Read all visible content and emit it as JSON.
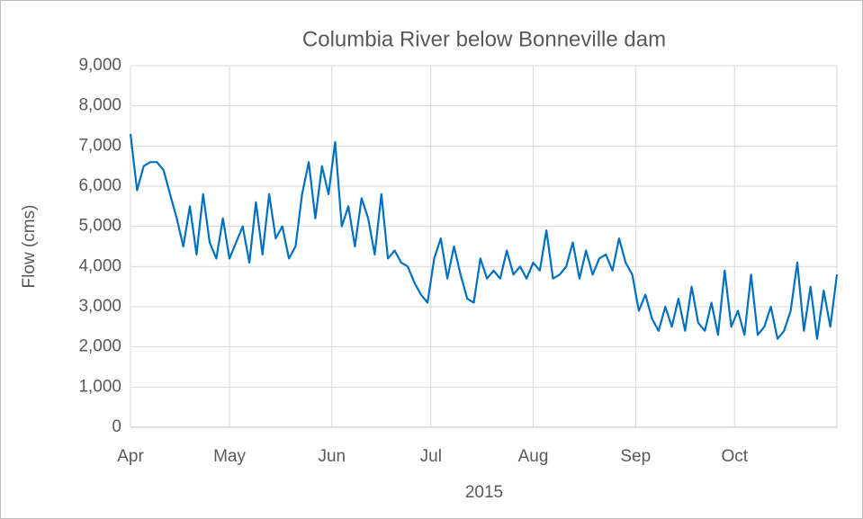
{
  "chart_data": {
    "type": "line",
    "title": "Columbia River below Bonneville dam",
    "x_label": "2015",
    "y_label": "Flow (cms)",
    "xlim": [
      0,
      214
    ],
    "xticks": [
      {
        "value": 0,
        "label": "Apr"
      },
      {
        "value": 30,
        "label": "May"
      },
      {
        "value": 61,
        "label": "Jun"
      },
      {
        "value": 91,
        "label": "Jul"
      },
      {
        "value": 122,
        "label": "Aug"
      },
      {
        "value": 153,
        "label": "Sep"
      },
      {
        "value": 183,
        "label": "Oct"
      },
      214
    ],
    "ylim": [
      0,
      9000
    ],
    "yticks": [
      0,
      {
        "value": 1000,
        "label": "1,000"
      },
      {
        "value": 2000,
        "label": "2,000"
      },
      {
        "value": 3000,
        "label": "3,000"
      },
      {
        "value": 4000,
        "label": "4,000"
      },
      {
        "value": 5000,
        "label": "5,000"
      },
      {
        "value": 6000,
        "label": "6,000"
      },
      {
        "value": 7000,
        "label": "7,000"
      },
      {
        "value": 8000,
        "label": "8,000"
      },
      {
        "value": 9000,
        "label": "9,000"
      }
    ],
    "grid": true,
    "series": [
      {
        "color": "#0070c0",
        "x": [
          0,
          2,
          4,
          6,
          8,
          10,
          12,
          14,
          16,
          18,
          20,
          22,
          24,
          26,
          28,
          30,
          32,
          34,
          36,
          38,
          40,
          42,
          44,
          46,
          48,
          50,
          52,
          54,
          56,
          58,
          60,
          62,
          64,
          66,
          68,
          70,
          72,
          74,
          76,
          78,
          80,
          82,
          84,
          86,
          88,
          90,
          92,
          94,
          96,
          98,
          100,
          102,
          104,
          106,
          108,
          110,
          112,
          114,
          116,
          118,
          120,
          122,
          124,
          126,
          128,
          130,
          132,
          134,
          136,
          138,
          140,
          142,
          144,
          146,
          148,
          150,
          152,
          154,
          156,
          158,
          160,
          162,
          164,
          166,
          168,
          170,
          172,
          174,
          176,
          178,
          180,
          182,
          184,
          186,
          188,
          190,
          192,
          194,
          196,
          198,
          200,
          202,
          204,
          206,
          208,
          210,
          212,
          214
        ],
        "values": [
          7300,
          5900,
          6500,
          6600,
          6600,
          6400,
          5800,
          5200,
          4500,
          5500,
          4300,
          5800,
          4600,
          4200,
          5200,
          4200,
          4600,
          5000,
          4100,
          5600,
          4300,
          5800,
          4700,
          5000,
          4200,
          4500,
          5800,
          6600,
          5200,
          6500,
          5800,
          7100,
          5000,
          5500,
          4500,
          5700,
          5200,
          4300,
          5800,
          4200,
          4400,
          4100,
          4000,
          3600,
          3300,
          3100,
          4200,
          4700,
          3700,
          4500,
          3800,
          3200,
          3100,
          4200,
          3700,
          3900,
          3700,
          4400,
          3800,
          4000,
          3700,
          4100,
          3900,
          4900,
          3700,
          3800,
          4000,
          4600,
          3700,
          4400,
          3800,
          4200,
          4300,
          3900,
          4700,
          4100,
          3800,
          2900,
          3300,
          2700,
          2400,
          3000,
          2500,
          3200,
          2400,
          3500,
          2600,
          2400,
          3100,
          2300,
          3900,
          2500,
          2900,
          2300,
          3800,
          2300,
          2500,
          3000,
          2200,
          2400,
          2900,
          4100,
          2400,
          3500,
          2200,
          3400,
          2500,
          3800
        ]
      }
    ]
  }
}
